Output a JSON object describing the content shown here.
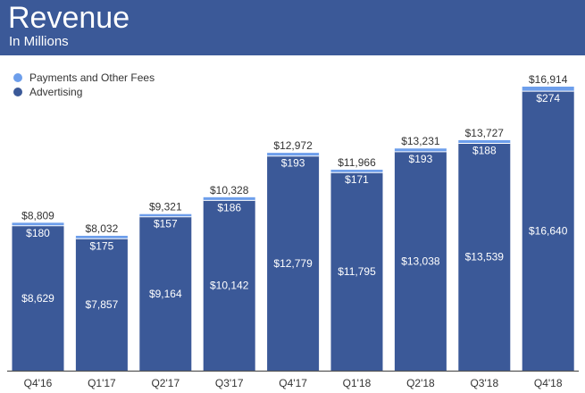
{
  "header": {
    "title": "Revenue",
    "subtitle": "In Millions"
  },
  "colors": {
    "header_bg": "#3b5998",
    "advertising": "#3b5998",
    "payments": "#6d9eeb",
    "axis": "#555555"
  },
  "legend": {
    "items": [
      {
        "label": "Payments and Other Fees",
        "color": "#6d9eeb"
      },
      {
        "label": "Advertising",
        "color": "#3b5998"
      }
    ]
  },
  "chart_data": {
    "type": "bar",
    "stacked": true,
    "title": "Revenue",
    "subtitle": "In Millions",
    "categories": [
      "Q4'16",
      "Q1'17",
      "Q2'17",
      "Q3'17",
      "Q4'17",
      "Q1'18",
      "Q2'18",
      "Q3'18",
      "Q4'18"
    ],
    "series": [
      {
        "name": "Advertising",
        "values": [
          8629,
          7857,
          9164,
          10142,
          12779,
          11795,
          13038,
          13539,
          16640
        ],
        "labels": [
          "$8,629",
          "$7,857",
          "$9,164",
          "$10,142",
          "$12,779",
          "$11,795",
          "$13,038",
          "$13,539",
          "$16,640"
        ]
      },
      {
        "name": "Payments and Other Fees",
        "values": [
          180,
          175,
          157,
          186,
          193,
          171,
          193,
          188,
          274
        ],
        "labels": [
          "$180",
          "$175",
          "$157",
          "$186",
          "$193",
          "$171",
          "$193",
          "$188",
          "$274"
        ]
      }
    ],
    "totals": [
      8809,
      8032,
      9321,
      10328,
      12972,
      11966,
      13231,
      13727,
      16914
    ],
    "total_labels": [
      "$8,809",
      "$8,032",
      "$9,321",
      "$10,328",
      "$12,972",
      "$11,966",
      "$13,231",
      "$13,727",
      "$16,914"
    ],
    "ylim": [
      0,
      16914
    ],
    "legend_position": "top-left",
    "grid": false
  }
}
